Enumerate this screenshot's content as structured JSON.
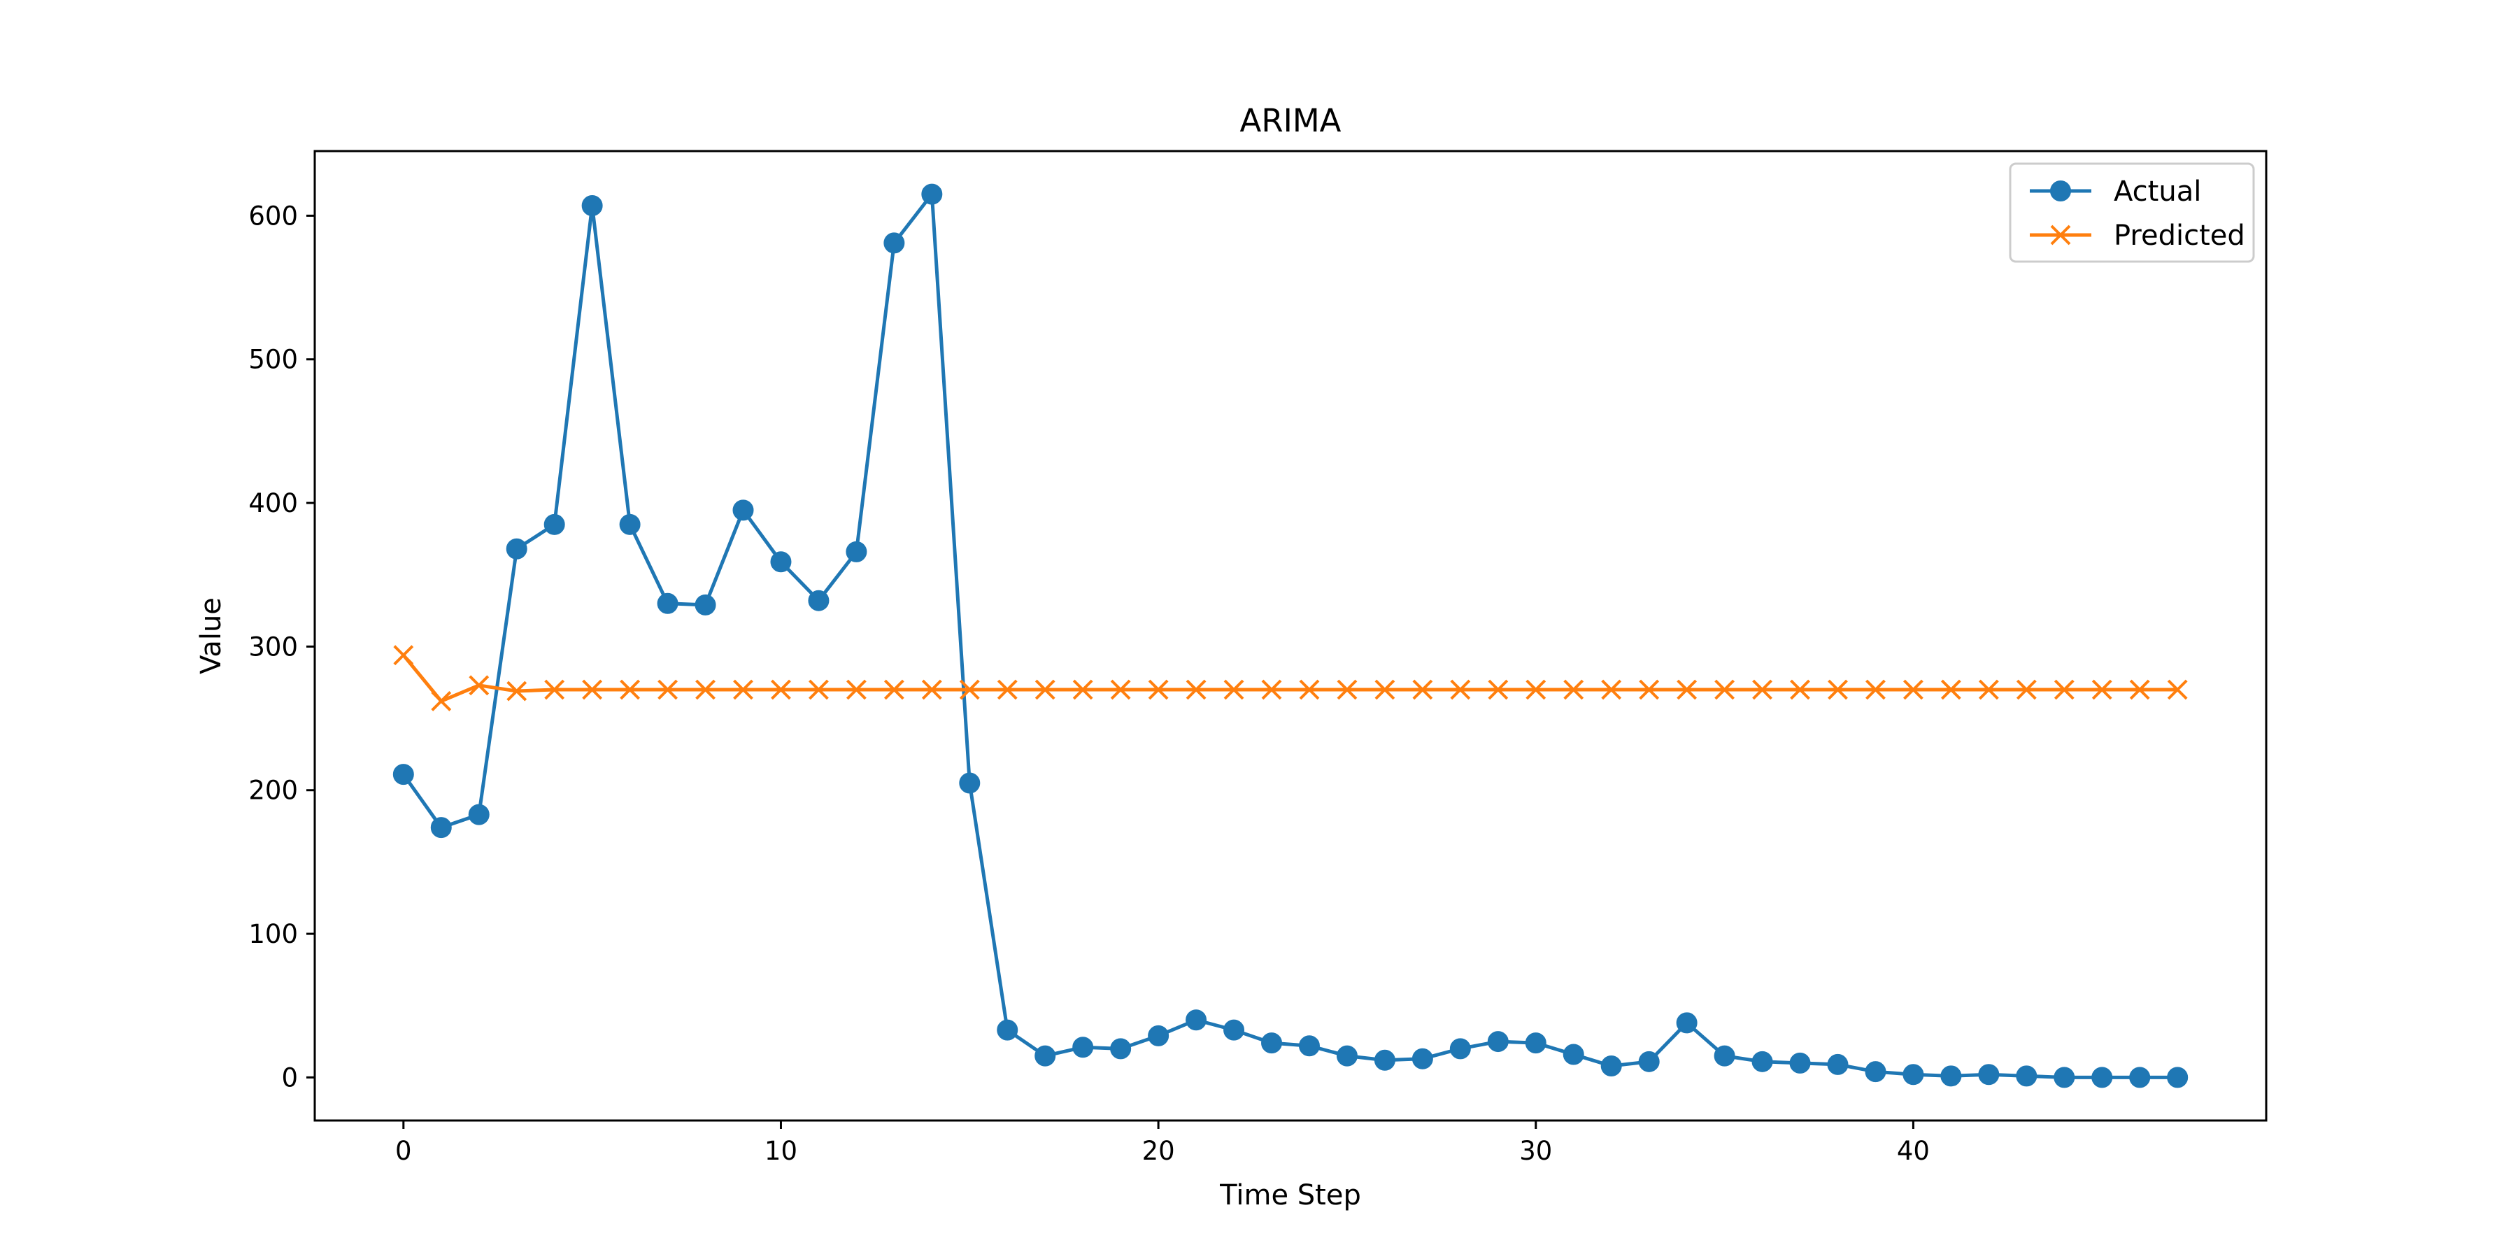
{
  "chart_data": {
    "type": "line",
    "title": "ARIMA",
    "xlabel": "Time Step",
    "ylabel": "Value",
    "xlim": [
      -2.35,
      49.35
    ],
    "ylim": [
      -30,
      645
    ],
    "xticks": [
      0,
      10,
      20,
      30,
      40
    ],
    "yticks": [
      0,
      100,
      200,
      300,
      400,
      500,
      600
    ],
    "grid": false,
    "legend_position": "top-right",
    "x": [
      0,
      1,
      2,
      3,
      4,
      5,
      6,
      7,
      8,
      9,
      10,
      11,
      12,
      13,
      14,
      15,
      16,
      17,
      18,
      19,
      20,
      21,
      22,
      23,
      24,
      25,
      26,
      27,
      28,
      29,
      30,
      31,
      32,
      33,
      34,
      35,
      36,
      37,
      38,
      39,
      40,
      41,
      42,
      43,
      44,
      45,
      46,
      47
    ],
    "series": [
      {
        "name": "Actual",
        "color": "#1f77b4",
        "marker": "circle",
        "values": [
          211,
          174,
          183,
          368,
          385,
          607,
          385,
          330,
          329,
          395,
          359,
          332,
          366,
          581,
          615,
          205,
          33,
          15,
          21,
          20,
          29,
          40,
          33,
          24,
          22,
          15,
          12,
          13,
          20,
          25,
          24,
          16,
          8,
          11,
          38,
          15,
          11,
          10,
          9,
          4,
          2,
          1,
          2,
          1,
          0,
          0,
          0,
          0
        ]
      },
      {
        "name": "Predicted",
        "color": "#ff7f0e",
        "marker": "x",
        "values": [
          294,
          262,
          273,
          269,
          270,
          270,
          270,
          270,
          270,
          270,
          270,
          270,
          270,
          270,
          270,
          270,
          270,
          270,
          270,
          270,
          270,
          270,
          270,
          270,
          270,
          270,
          270,
          270,
          270,
          270,
          270,
          270,
          270,
          270,
          270,
          270,
          270,
          270,
          270,
          270,
          270,
          270,
          270,
          270,
          270,
          270,
          270,
          270
        ]
      }
    ]
  }
}
